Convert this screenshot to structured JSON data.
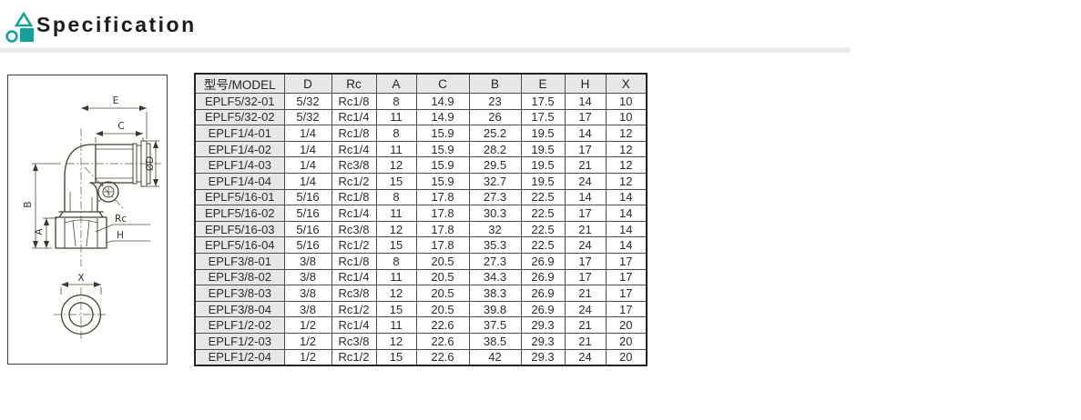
{
  "page": {
    "section_title": "Specification",
    "accent_color": "#17A09A",
    "shade_color": "#E7E7E7"
  },
  "drawing": {
    "name": "elbow-push-in-fitting-technical-drawing",
    "labels": {
      "e": "E",
      "c": "C",
      "od": "ØD",
      "b": "B",
      "a": "A",
      "rc": "Rc",
      "h": "H",
      "x": "X"
    }
  },
  "table": {
    "columns": [
      "型号/MODEL",
      "D",
      "Rc",
      "A",
      "C",
      "B",
      "E",
      "H",
      "X"
    ],
    "rows": [
      [
        "EPLF5/32-01",
        "5/32",
        "Rc1/8",
        "8",
        "14.9",
        "23",
        "17.5",
        "14",
        "10"
      ],
      [
        "EPLF5/32-02",
        "5/32",
        "Rc1/4",
        "11",
        "14.9",
        "26",
        "17.5",
        "17",
        "10"
      ],
      [
        "EPLF1/4-01",
        "1/4",
        "Rc1/8",
        "8",
        "15.9",
        "25.2",
        "19.5",
        "14",
        "12"
      ],
      [
        "EPLF1/4-02",
        "1/4",
        "Rc1/4",
        "11",
        "15.9",
        "28.2",
        "19.5",
        "17",
        "12"
      ],
      [
        "EPLF1/4-03",
        "1/4",
        "Rc3/8",
        "12",
        "15.9",
        "29.5",
        "19.5",
        "21",
        "12"
      ],
      [
        "EPLF1/4-04",
        "1/4",
        "Rc1/2",
        "15",
        "15.9",
        "32.7",
        "19.5",
        "24",
        "12"
      ],
      [
        "EPLF5/16-01",
        "5/16",
        "Rc1/8",
        "8",
        "17.8",
        "27.3",
        "22.5",
        "14",
        "14"
      ],
      [
        "EPLF5/16-02",
        "5/16",
        "Rc1/4",
        "11",
        "17.8",
        "30.3",
        "22.5",
        "17",
        "14"
      ],
      [
        "EPLF5/16-03",
        "5/16",
        "Rc3/8",
        "12",
        "17.8",
        "32",
        "22.5",
        "21",
        "14"
      ],
      [
        "EPLF5/16-04",
        "5/16",
        "Rc1/2",
        "15",
        "17.8",
        "35.3",
        "22.5",
        "24",
        "14"
      ],
      [
        "EPLF3/8-01",
        "3/8",
        "Rc1/8",
        "8",
        "20.5",
        "27.3",
        "26.9",
        "17",
        "17"
      ],
      [
        "EPLF3/8-02",
        "3/8",
        "Rc1/4",
        "11",
        "20.5",
        "34.3",
        "26.9",
        "17",
        "17"
      ],
      [
        "EPLF3/8-03",
        "3/8",
        "Rc3/8",
        "12",
        "20.5",
        "38.3",
        "26.9",
        "21",
        "17"
      ],
      [
        "EPLF3/8-04",
        "3/8",
        "Rc1/2",
        "15",
        "20.5",
        "39.8",
        "26.9",
        "24",
        "17"
      ],
      [
        "EPLF1/2-02",
        "1/2",
        "Rc1/4",
        "11",
        "22.6",
        "37.5",
        "29.3",
        "21",
        "20"
      ],
      [
        "EPLF1/2-03",
        "1/2",
        "Rc3/8",
        "12",
        "22.6",
        "38.5",
        "29.3",
        "21",
        "20"
      ],
      [
        "EPLF1/2-04",
        "1/2",
        "Rc1/2",
        "15",
        "22.6",
        "42",
        "29.3",
        "24",
        "20"
      ]
    ]
  }
}
